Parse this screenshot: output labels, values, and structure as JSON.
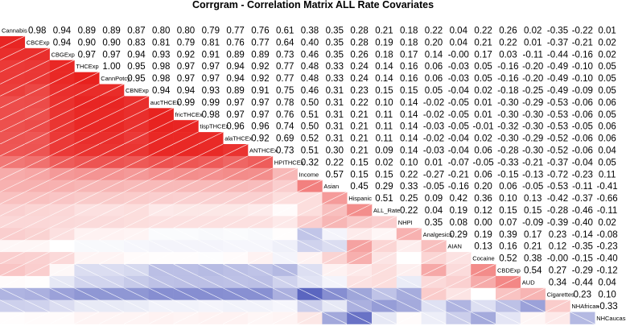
{
  "chart_data": {
    "type": "heatmap",
    "title": "Corrgram - Correlation Matrix ALL Rate Covariates",
    "variables": [
      "Cannabis",
      "CBCExp",
      "CBGExp",
      "THCExp",
      "CannPotcy",
      "CBNExp",
      "aucTHCEx",
      "fricTHCEx",
      "tispTHCEx",
      "alaTHCEx",
      "ANTHCEx",
      "HPITHCEx",
      "Income",
      "Asian",
      "Hispanic",
      "ALL_Rate",
      "NHPI",
      "Analgesics",
      "AIAN",
      "Cocaine",
      "CBDExp",
      "AUD",
      "Cigarettes",
      "NHAfrican",
      "NHCaucas"
    ],
    "upper": [
      [
        0.98,
        0.94,
        0.89,
        0.89,
        0.87,
        0.8,
        0.8,
        0.79,
        0.77,
        0.76,
        0.61,
        0.38,
        0.35,
        0.28,
        0.21,
        0.18,
        0.22,
        0.04,
        0.22,
        0.26,
        0.02,
        -0.35,
        -0.22,
        0.01
      ],
      [
        0.94,
        0.9,
        0.9,
        0.83,
        0.81,
        0.79,
        0.81,
        0.76,
        0.77,
        0.64,
        0.4,
        0.35,
        0.28,
        0.19,
        0.18,
        0.2,
        0.04,
        0.21,
        0.22,
        0.01,
        -0.37,
        -0.21,
        0.02
      ],
      [
        0.97,
        0.97,
        0.94,
        0.93,
        0.92,
        0.91,
        0.89,
        0.89,
        0.73,
        0.46,
        0.35,
        0.26,
        0.18,
        0.17,
        0.14,
        -0.0,
        0.17,
        0.03,
        -0.11,
        -0.44,
        -0.16,
        0.02
      ],
      [
        1.0,
        0.95,
        0.98,
        0.97,
        0.97,
        0.94,
        0.92,
        0.77,
        0.48,
        0.33,
        0.24,
        0.14,
        0.16,
        0.06,
        -0.03,
        0.05,
        -0.16,
        -0.2,
        -0.49,
        -0.1,
        0.05
      ],
      [
        0.95,
        0.98,
        0.97,
        0.97,
        0.94,
        0.92,
        0.77,
        0.48,
        0.33,
        0.24,
        0.14,
        0.16,
        0.06,
        -0.03,
        0.05,
        -0.16,
        -0.2,
        -0.49,
        -0.1,
        0.05
      ],
      [
        0.94,
        0.94,
        0.93,
        0.89,
        0.91,
        0.75,
        0.46,
        0.31,
        0.23,
        0.15,
        0.15,
        0.05,
        -0.04,
        0.02,
        -0.18,
        -0.25,
        -0.49,
        -0.09,
        0.05
      ],
      [
        0.99,
        0.99,
        0.97,
        0.97,
        0.78,
        0.5,
        0.31,
        0.22,
        0.1,
        0.14,
        -0.02,
        -0.05,
        0.01,
        -0.3,
        -0.29,
        -0.53,
        -0.06,
        0.06
      ],
      [
        0.98,
        0.97,
        0.97,
        0.76,
        0.51,
        0.31,
        0.21,
        0.11,
        0.14,
        -0.02,
        -0.05,
        0.01,
        -0.3,
        -0.3,
        -0.53,
        -0.06,
        0.05
      ],
      [
        0.96,
        0.96,
        0.74,
        0.5,
        0.31,
        0.21,
        0.11,
        0.14,
        -0.03,
        -0.05,
        -0.01,
        -0.32,
        -0.3,
        -0.53,
        -0.05,
        0.06
      ],
      [
        0.92,
        0.69,
        0.52,
        0.31,
        0.21,
        0.11,
        0.14,
        -0.02,
        -0.04,
        0.02,
        -0.3,
        -0.29,
        -0.52,
        -0.06,
        0.06
      ],
      [
        0.73,
        0.51,
        0.3,
        0.21,
        0.09,
        0.14,
        -0.03,
        -0.04,
        0.06,
        -0.28,
        -0.3,
        -0.52,
        -0.06,
        0.04
      ],
      [
        0.32,
        0.22,
        0.15,
        0.02,
        0.1,
        0.01,
        -0.07,
        -0.05,
        -0.33,
        -0.21,
        -0.37,
        -0.04,
        0.05
      ],
      [
        0.57,
        0.15,
        0.15,
        0.22,
        -0.27,
        -0.21,
        0.06,
        -0.15,
        -0.13,
        -0.72,
        -0.23,
        0.11
      ],
      [
        0.45,
        0.29,
        0.33,
        -0.05,
        -0.16,
        0.2,
        0.06,
        -0.05,
        -0.53,
        -0.11,
        -0.41
      ],
      [
        0.51,
        0.25,
        0.09,
        0.42,
        0.36,
        0.1,
        0.13,
        -0.42,
        -0.37,
        -0.66
      ],
      [
        0.22,
        0.04,
        0.19,
        0.12,
        0.15,
        0.15,
        -0.28,
        -0.46,
        -0.11
      ],
      [
        0.35,
        0.08,
        0.0,
        0.07,
        -0.09,
        -0.39,
        -0.4,
        0.02
      ],
      [
        0.29,
        0.19,
        0.39,
        0.17,
        0.23,
        -0.14,
        -0.08
      ],
      [
        0.13,
        0.16,
        0.21,
        0.12,
        -0.35,
        -0.23
      ],
      [
        0.52,
        0.38,
        -0.0,
        -0.15,
        -0.4
      ],
      [
        0.54,
        0.27,
        -0.29,
        -0.12
      ],
      [
        0.34,
        -0.44,
        0.04
      ],
      [
        0.23,
        0.1
      ],
      [
        -0.33
      ]
    ],
    "colors": {
      "positive": "#e8211e",
      "negative": "#1b2aa8",
      "neutral": "#ffffff"
    }
  }
}
